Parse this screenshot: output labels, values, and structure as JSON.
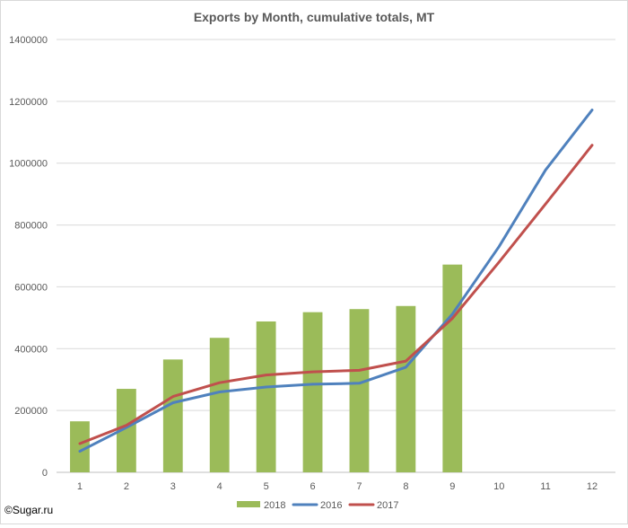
{
  "chart_data": {
    "type": "bar",
    "title": "Exports by Month, cumulative totals, MT",
    "xlabel": "",
    "ylabel": "",
    "categories": [
      "1",
      "2",
      "3",
      "4",
      "5",
      "6",
      "7",
      "8",
      "9",
      "10",
      "11",
      "12"
    ],
    "ylim": [
      0,
      1400000
    ],
    "y_ticks": [
      "0",
      "200000",
      "400000",
      "600000",
      "800000",
      "1000000",
      "1200000",
      "1400000"
    ],
    "grid": true,
    "legend_position": "bottom",
    "series": [
      {
        "name": "2018",
        "kind": "bar",
        "color": "#9bbb59",
        "values": [
          165000,
          270000,
          365000,
          435000,
          488000,
          518000,
          528000,
          538000,
          672000,
          null,
          null,
          null
        ]
      },
      {
        "name": "2016",
        "kind": "line",
        "color": "#4f81bd",
        "values": [
          68000,
          145000,
          225000,
          260000,
          276000,
          285000,
          288000,
          340000,
          512000,
          730000,
          978000,
          1172000
        ]
      },
      {
        "name": "2017",
        "kind": "line",
        "color": "#c0504d",
        "values": [
          93000,
          152000,
          245000,
          290000,
          315000,
          325000,
          330000,
          360000,
          498000,
          680000,
          868000,
          1058000
        ]
      }
    ]
  },
  "credit": "©Sugar.ru"
}
